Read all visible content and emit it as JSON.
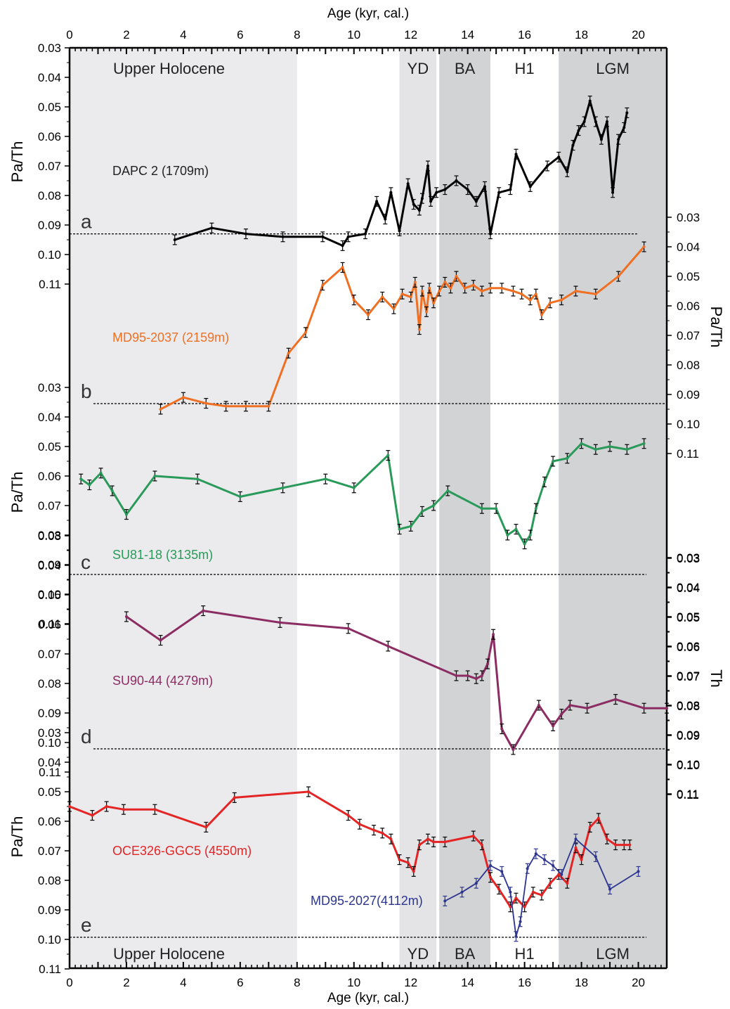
{
  "chart_data": {
    "type": "line",
    "x_axis": {
      "label": "Age (kyr, cal.)",
      "min": 0,
      "max": 21,
      "ticks": [
        0,
        2,
        4,
        6,
        8,
        10,
        12,
        14,
        16,
        18,
        20
      ],
      "tick_labels": [
        "0",
        "2",
        "4",
        "6",
        "8",
        "10",
        "12",
        "14",
        "16",
        "18",
        "20"
      ]
    },
    "y_axis_left_label": "Pa/Th",
    "y_axis_right_labels": [
      "Pa/Th",
      "Th"
    ],
    "y_ticks": [
      0.03,
      0.04,
      0.05,
      0.06,
      0.07,
      0.08,
      0.09,
      0.1,
      0.11
    ],
    "y_tick_labels": [
      "0.03",
      "0.04",
      "0.05",
      "0.06",
      "0.07",
      "0.08",
      "0.09",
      "0.10",
      "0.11"
    ],
    "production_ratio": 0.093,
    "intervals": [
      {
        "label": "Upper Holocene",
        "start": 0,
        "end": 8,
        "color": "#ebebed"
      },
      {
        "label": "YD",
        "start": 11.6,
        "end": 12.9,
        "color": "#e4e4e6"
      },
      {
        "label": "BA",
        "start": 13.0,
        "end": 14.8,
        "color": "#d2d3d5"
      },
      {
        "label": "H1",
        "start": 14.8,
        "end": 17.2,
        "color": "#ffffff"
      },
      {
        "label": "LGM",
        "start": 17.2,
        "end": 21,
        "color": "#d2d3d5"
      }
    ],
    "series": [
      {
        "name": "DAPC 2 (1709m)",
        "panel": "a",
        "color": "#000000",
        "x": [
          3.7,
          5.0,
          6.2,
          7.5,
          8.9,
          9.6,
          9.8,
          10.4,
          10.8,
          11.1,
          11.3,
          11.6,
          11.9,
          12.1,
          12.3,
          12.4,
          12.6,
          12.7,
          12.9,
          13.2,
          13.6,
          14.0,
          14.3,
          14.6,
          14.8,
          15.1,
          15.5,
          15.7,
          16.2,
          16.8,
          17.2,
          17.5,
          17.7,
          17.9,
          18.1,
          18.3,
          18.5,
          18.7,
          18.9,
          19.1,
          19.3,
          19.5,
          19.6
        ],
        "y": [
          0.095,
          0.091,
          0.093,
          0.094,
          0.094,
          0.097,
          0.094,
          0.093,
          0.082,
          0.088,
          0.079,
          0.092,
          0.076,
          0.083,
          0.085,
          0.081,
          0.07,
          0.082,
          0.079,
          0.078,
          0.075,
          0.078,
          0.082,
          0.077,
          0.093,
          0.079,
          0.078,
          0.066,
          0.077,
          0.07,
          0.067,
          0.072,
          0.063,
          0.058,
          0.055,
          0.048,
          0.055,
          0.061,
          0.055,
          0.079,
          0.061,
          0.057,
          0.052
        ]
      },
      {
        "name": "MD95-2037 (2159m)",
        "panel": "b",
        "color": "#f07023",
        "x": [
          3.2,
          4.0,
          4.8,
          5.5,
          6.2,
          7.0,
          7.7,
          8.3,
          8.9,
          9.6,
          10.0,
          10.5,
          11.0,
          11.4,
          11.7,
          12.0,
          12.15,
          12.3,
          12.4,
          12.55,
          12.65,
          12.8,
          13.0,
          13.2,
          13.4,
          13.6,
          13.9,
          14.2,
          14.5,
          14.8,
          15.2,
          15.6,
          15.9,
          16.2,
          16.4,
          16.6,
          16.9,
          17.3,
          17.8,
          18.5,
          19.3,
          20.2
        ],
        "y": [
          0.095,
          0.091,
          0.093,
          0.094,
          0.094,
          0.094,
          0.076,
          0.069,
          0.053,
          0.047,
          0.058,
          0.063,
          0.057,
          0.061,
          0.056,
          0.057,
          0.052,
          0.068,
          0.055,
          0.062,
          0.054,
          0.059,
          0.055,
          0.052,
          0.054,
          0.05,
          0.054,
          0.053,
          0.055,
          0.054,
          0.054,
          0.055,
          0.056,
          0.058,
          0.056,
          0.063,
          0.059,
          0.058,
          0.055,
          0.056,
          0.05,
          0.04
        ]
      },
      {
        "name": "SU81-18 (3135m)",
        "panel": "c",
        "color": "#2a9a5a",
        "x": [
          0.4,
          0.7,
          1.1,
          1.5,
          2.0,
          3.0,
          4.5,
          6.0,
          7.5,
          9.0,
          10.0,
          11.2,
          11.6,
          12.0,
          12.4,
          12.8,
          13.3,
          14.5,
          15.0,
          15.4,
          15.7,
          16.0,
          16.2,
          16.4,
          16.7,
          17.0,
          17.5,
          18.0,
          18.5,
          19.0,
          19.6,
          20.2
        ],
        "y": [
          0.061,
          0.063,
          0.059,
          0.065,
          0.073,
          0.06,
          0.061,
          0.067,
          0.064,
          0.061,
          0.064,
          0.053,
          0.078,
          0.077,
          0.072,
          0.07,
          0.065,
          0.071,
          0.071,
          0.08,
          0.078,
          0.083,
          0.08,
          0.071,
          0.062,
          0.055,
          0.054,
          0.049,
          0.051,
          0.05,
          0.051,
          0.049
        ]
      },
      {
        "name": "SU90-44 (4279m)",
        "panel": "d",
        "color": "#8b2c62",
        "x": [
          2.0,
          3.2,
          4.7,
          7.4,
          9.8,
          11.2,
          13.6,
          14.0,
          14.3,
          14.5,
          14.7,
          14.9,
          15.2,
          15.6,
          16.5,
          17.0,
          17.3,
          17.6,
          18.2,
          19.2,
          20.2,
          21.0
        ],
        "y": [
          0.05,
          0.058,
          0.048,
          0.052,
          0.054,
          0.06,
          0.07,
          0.07,
          0.071,
          0.07,
          0.066,
          0.056,
          0.088,
          0.095,
          0.08,
          0.087,
          0.083,
          0.08,
          0.081,
          0.078,
          0.081,
          0.081
        ]
      },
      {
        "name": "OCE326-GGC5 (4550m)",
        "panel": "e",
        "color": "#e32526",
        "x": [
          0.0,
          0.8,
          1.3,
          1.9,
          3.0,
          4.8,
          5.8,
          8.4,
          9.8,
          10.2,
          10.7,
          11.0,
          11.3,
          11.6,
          11.9,
          12.1,
          12.3,
          12.6,
          12.8,
          13.2,
          14.2,
          14.5,
          14.8,
          15.1,
          15.5,
          15.7,
          16.0,
          16.3,
          16.6,
          16.9,
          17.2,
          17.5,
          17.8,
          18.0,
          18.3,
          18.6,
          18.9,
          19.2,
          19.5,
          19.7
        ],
        "y": [
          0.055,
          0.058,
          0.055,
          0.056,
          0.056,
          0.062,
          0.052,
          0.05,
          0.058,
          0.061,
          0.063,
          0.064,
          0.066,
          0.073,
          0.074,
          0.077,
          0.068,
          0.066,
          0.067,
          0.067,
          0.065,
          0.068,
          0.079,
          0.083,
          0.089,
          0.086,
          0.089,
          0.084,
          0.085,
          0.081,
          0.078,
          0.081,
          0.069,
          0.073,
          0.062,
          0.059,
          0.066,
          0.068,
          0.068,
          0.068
        ]
      },
      {
        "name": "MD95-2027(4112m)",
        "panel": "e",
        "color": "#2c3590",
        "x": [
          13.2,
          13.8,
          14.3,
          14.8,
          15.2,
          15.5,
          15.7,
          15.85,
          16.1,
          16.4,
          16.7,
          17.0,
          17.3,
          17.8,
          18.5,
          19.0,
          20.0
        ],
        "y": [
          0.087,
          0.084,
          0.081,
          0.075,
          0.077,
          0.084,
          0.099,
          0.094,
          0.076,
          0.071,
          0.073,
          0.075,
          0.078,
          0.066,
          0.072,
          0.083,
          0.077
        ]
      }
    ],
    "panel_labels": [
      "a",
      "b",
      "c",
      "d",
      "e"
    ]
  }
}
